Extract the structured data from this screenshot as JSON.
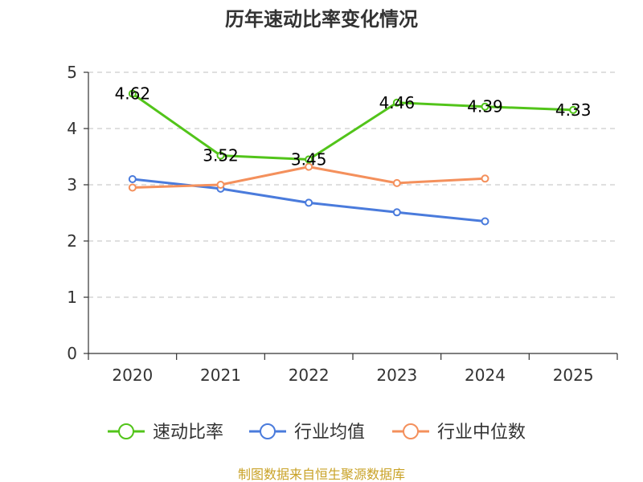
{
  "chart_data": {
    "type": "line",
    "title": "历年速动比率变化情况",
    "categories": [
      "2020",
      "2021",
      "2022",
      "2023",
      "2024",
      "2025"
    ],
    "ylim": [
      0,
      5
    ],
    "yticks": [
      0,
      1,
      2,
      3,
      4,
      5
    ],
    "grid": true,
    "legend_position": "bottom",
    "series": [
      {
        "name": "速动比率",
        "color": "#52c41a",
        "values": [
          4.62,
          3.52,
          3.45,
          4.46,
          4.39,
          4.33
        ],
        "labels": [
          "4.62",
          "3.52",
          "3.45",
          "4.46",
          "4.39",
          "4.33"
        ]
      },
      {
        "name": "行业均值",
        "color": "#4a7bdc",
        "values": [
          3.1,
          2.93,
          2.68,
          2.51,
          2.35,
          null
        ]
      },
      {
        "name": "行业中位数",
        "color": "#f4905c",
        "values": [
          2.95,
          3.0,
          3.32,
          3.03,
          3.11,
          null
        ]
      }
    ]
  },
  "source_text": "制图数据来自恒生聚源数据库",
  "source_color": "#c9a227"
}
